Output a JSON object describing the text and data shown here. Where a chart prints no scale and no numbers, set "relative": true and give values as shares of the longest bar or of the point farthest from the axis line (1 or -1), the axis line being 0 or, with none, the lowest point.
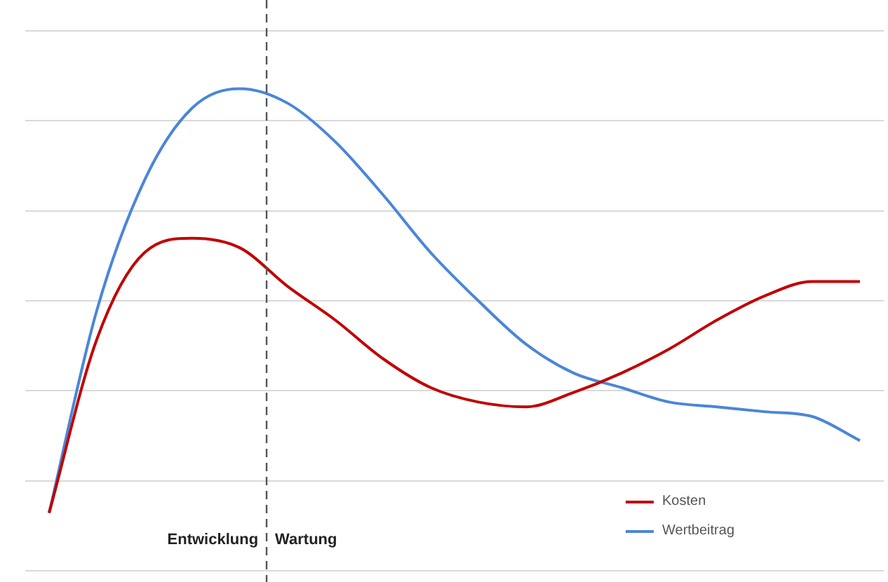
{
  "chart_data": {
    "type": "line",
    "relative": true,
    "categories": [
      null,
      null,
      null,
      null,
      null,
      null,
      null,
      null,
      null,
      null,
      null,
      null,
      null,
      null,
      null,
      null,
      null,
      null
    ],
    "series": [
      {
        "name": "Kosten",
        "color": "#c00000",
        "values": [
          0.12,
          0.48,
          0.66,
          0.69,
          0.67,
          0.59,
          0.52,
          0.44,
          0.38,
          0.35,
          0.34,
          0.37,
          0.41,
          0.46,
          0.52,
          0.57,
          0.6,
          0.6
        ]
      },
      {
        "name": "Wertbeitrag",
        "color": "#4a86d8",
        "values": [
          0.12,
          0.54,
          0.81,
          0.96,
          1.0,
          0.97,
          0.89,
          0.78,
          0.66,
          0.56,
          0.47,
          0.41,
          0.38,
          0.35,
          0.34,
          0.33,
          0.32,
          0.27
        ]
      }
    ],
    "annotations": [
      "Entwicklung",
      "Wartung"
    ],
    "grid": "y",
    "legend": "bottom right",
    "marker": "none",
    "line_style": "solid"
  }
}
